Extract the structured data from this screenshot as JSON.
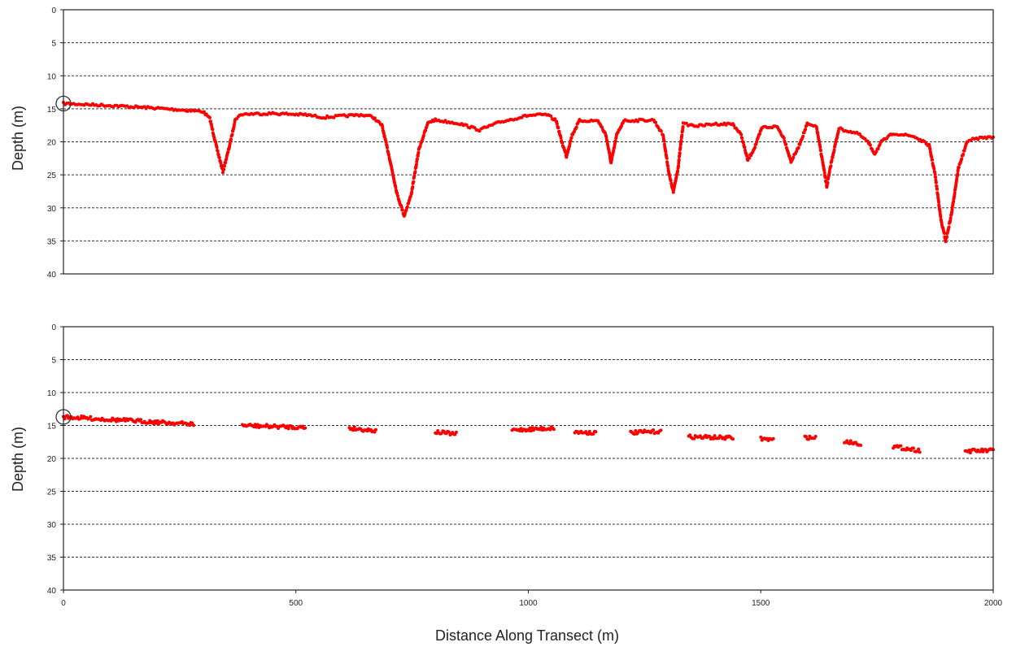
{
  "chart_data": [
    {
      "type": "scatter",
      "ylabel": "Depth (m)",
      "ylim": [
        0,
        40
      ],
      "y_inverted": true,
      "xlim": [
        0,
        2000
      ],
      "yticks": [
        "0",
        "5",
        "10",
        "15",
        "20",
        "25",
        "30",
        "35",
        "40"
      ],
      "xticks": [],
      "grid": true,
      "marker_color": "#ff0000",
      "start_marker": {
        "x": 0,
        "y": 14.2
      },
      "profile": [
        [
          0,
          14.2
        ],
        [
          100,
          14.5
        ],
        [
          200,
          14.9
        ],
        [
          300,
          15.4
        ],
        [
          315,
          16.5
        ],
        [
          330,
          21
        ],
        [
          343,
          24.5
        ],
        [
          356,
          21
        ],
        [
          370,
          16.5
        ],
        [
          385,
          15.8
        ],
        [
          450,
          15.7
        ],
        [
          520,
          15.9
        ],
        [
          560,
          16.3
        ],
        [
          600,
          16.1
        ],
        [
          640,
          15.9
        ],
        [
          665,
          16.2
        ],
        [
          685,
          17.5
        ],
        [
          700,
          22
        ],
        [
          718,
          28
        ],
        [
          733,
          31.2
        ],
        [
          748,
          28
        ],
        [
          765,
          21
        ],
        [
          785,
          17
        ],
        [
          800,
          16.7
        ],
        [
          850,
          17.2
        ],
        [
          895,
          18.2
        ],
        [
          940,
          17
        ],
        [
          1000,
          16
        ],
        [
          1040,
          15.9
        ],
        [
          1060,
          16.8
        ],
        [
          1072,
          20
        ],
        [
          1082,
          22.2
        ],
        [
          1094,
          19
        ],
        [
          1110,
          16.8
        ],
        [
          1150,
          16.8
        ],
        [
          1167,
          19
        ],
        [
          1178,
          23.2
        ],
        [
          1190,
          19
        ],
        [
          1205,
          16.8
        ],
        [
          1270,
          16.7
        ],
        [
          1290,
          19
        ],
        [
          1303,
          25
        ],
        [
          1312,
          27.6
        ],
        [
          1322,
          24
        ],
        [
          1333,
          17.3
        ],
        [
          1365,
          17.6
        ],
        [
          1400,
          17.3
        ],
        [
          1440,
          17.3
        ],
        [
          1458,
          19
        ],
        [
          1472,
          22.8
        ],
        [
          1486,
          21
        ],
        [
          1503,
          17.8
        ],
        [
          1535,
          17.7
        ],
        [
          1550,
          19.5
        ],
        [
          1565,
          23
        ],
        [
          1580,
          21
        ],
        [
          1600,
          17.3
        ],
        [
          1620,
          17.8
        ],
        [
          1633,
          23
        ],
        [
          1642,
          26.8
        ],
        [
          1652,
          23
        ],
        [
          1668,
          18
        ],
        [
          1710,
          18.8
        ],
        [
          1730,
          20
        ],
        [
          1745,
          21.8
        ],
        [
          1760,
          20
        ],
        [
          1785,
          18.7
        ],
        [
          1830,
          19.2
        ],
        [
          1862,
          20.5
        ],
        [
          1875,
          25
        ],
        [
          1888,
          32
        ],
        [
          1898,
          35
        ],
        [
          1910,
          31
        ],
        [
          1925,
          24
        ],
        [
          1945,
          19.8
        ],
        [
          1975,
          19.4
        ],
        [
          2000,
          19.3
        ]
      ]
    },
    {
      "type": "scatter",
      "xlabel": "Distance Along Transect (m)",
      "ylabel": "Depth (m)",
      "ylim": [
        0,
        40
      ],
      "y_inverted": true,
      "xlim": [
        0,
        2000
      ],
      "yticks": [
        "0",
        "5",
        "10",
        "15",
        "20",
        "25",
        "30",
        "35",
        "40"
      ],
      "xticks": [
        "0",
        "500",
        "1000",
        "1500",
        "2000"
      ],
      "grid": true,
      "marker_color": "#ff0000",
      "start_marker": {
        "x": 0,
        "y": 13.7
      },
      "segments": [
        {
          "x": [
            0,
            280
          ],
          "y": [
            13.7,
            14.8
          ]
        },
        {
          "x": [
            385,
            520
          ],
          "y": [
            15.0,
            15.3
          ]
        },
        {
          "x": [
            615,
            672
          ],
          "y": [
            15.4,
            15.8
          ]
        },
        {
          "x": [
            800,
            845
          ],
          "y": [
            16.0,
            16.3
          ]
        },
        {
          "x": [
            965,
            1055
          ],
          "y": [
            15.7,
            15.4
          ]
        },
        {
          "x": [
            1100,
            1145
          ],
          "y": [
            16.0,
            16.1
          ]
        },
        {
          "x": [
            1220,
            1285
          ],
          "y": [
            16.1,
            15.9
          ]
        },
        {
          "x": [
            1345,
            1440
          ],
          "y": [
            16.7,
            16.9
          ]
        },
        {
          "x": [
            1500,
            1527
          ],
          "y": [
            17.0,
            17.2
          ]
        },
        {
          "x": [
            1595,
            1618
          ],
          "y": [
            16.8,
            16.9
          ]
        },
        {
          "x": [
            1680,
            1715
          ],
          "y": [
            17.4,
            17.8
          ]
        },
        {
          "x": [
            1785,
            1842
          ],
          "y": [
            18.2,
            18.8
          ]
        },
        {
          "x": [
            1940,
            2000
          ],
          "y": [
            18.9,
            18.8
          ]
        }
      ]
    }
  ]
}
